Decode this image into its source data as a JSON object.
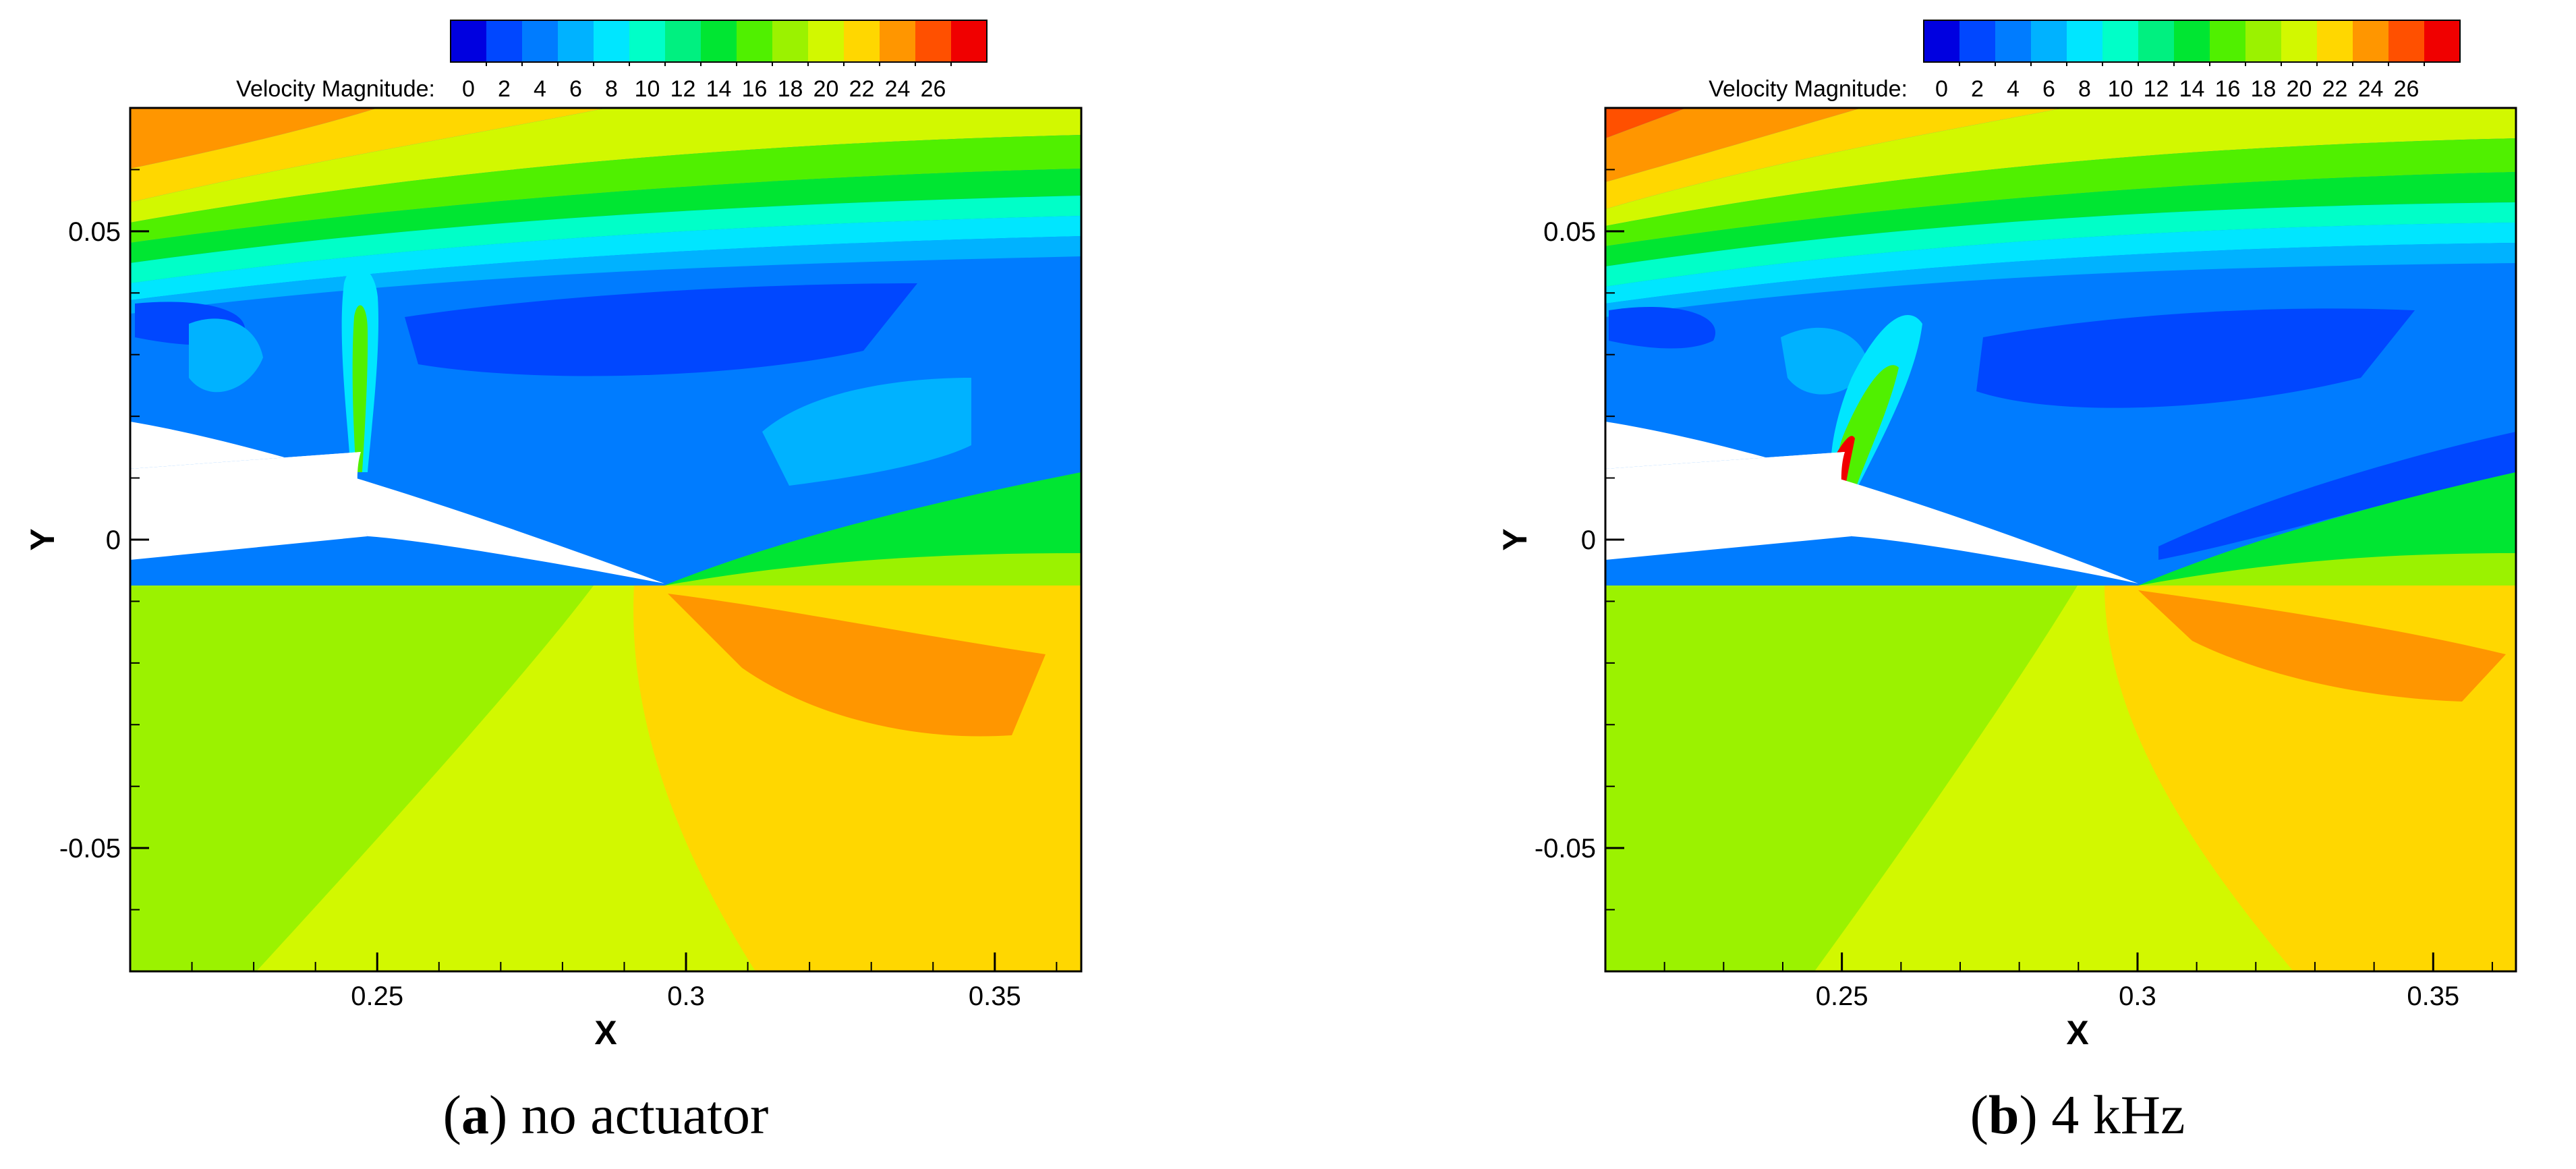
{
  "colorbar": {
    "title": "Velocity Magnitude:",
    "ticks": [
      "0",
      "2",
      "4",
      "6",
      "8",
      "10",
      "12",
      "14",
      "16",
      "18",
      "20",
      "22",
      "24",
      "26"
    ],
    "colors": [
      "#0000e0",
      "#0047ff",
      "#007cff",
      "#00b2ff",
      "#00e6ff",
      "#00ffc8",
      "#00f080",
      "#00e632",
      "#50f000",
      "#9bf200",
      "#d2f800",
      "#ffd700",
      "#ff9600",
      "#ff5000",
      "#f00000"
    ]
  },
  "chart_data": [
    {
      "type": "contour",
      "panel_label": "a",
      "caption": "no actuator",
      "xlabel": "X",
      "ylabel": "Y",
      "xlim": [
        0.21,
        0.364
      ],
      "ylim": [
        -0.07,
        0.07
      ],
      "xticks": [
        "0.25",
        "0.3",
        "0.35"
      ],
      "yticks": [
        "0.05",
        "0",
        "-0.05"
      ],
      "variable": "Velocity Magnitude",
      "vlim": [
        0,
        26
      ]
    },
    {
      "type": "contour",
      "panel_label": "b",
      "caption": "4 kHz",
      "xlabel": "X",
      "ylabel": "Y",
      "xlim": [
        0.21,
        0.364
      ],
      "ylim": [
        -0.07,
        0.07
      ],
      "xticks": [
        "0.25",
        "0.3",
        "0.35"
      ],
      "yticks": [
        "0.05",
        "0",
        "-0.05"
      ],
      "variable": "Velocity Magnitude",
      "vlim": [
        0,
        26
      ]
    }
  ]
}
